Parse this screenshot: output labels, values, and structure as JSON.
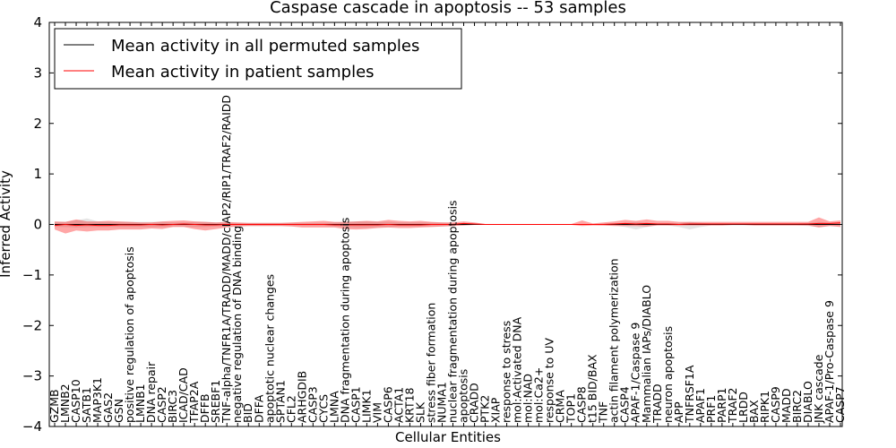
{
  "chart_data": {
    "type": "line",
    "title": "Caspase cascade in apoptosis -- 53 samples",
    "xlabel": "Cellular Entities",
    "ylabel": "Inferred Activity",
    "ylim": [
      -4,
      4
    ],
    "yticks": [
      -4,
      -3,
      -2,
      -1,
      0,
      1,
      2,
      3,
      4
    ],
    "ytick_labels": [
      "−4",
      "−3",
      "−2",
      "−1",
      "0",
      "1",
      "2",
      "3",
      "4"
    ],
    "legend": {
      "location": "top-left",
      "entries": [
        "Mean activity in all permuted samples",
        "Mean activity in patient samples"
      ]
    },
    "categories": [
      "GZMB",
      "LMNB2",
      "CASP10",
      "SATB1",
      "MAP3K1",
      "GAS2",
      "GSN",
      "positive regulation of apoptosis",
      "LMNB1",
      "DNA repair",
      "CASP2",
      "BIRC3",
      "ICAD/CAD",
      "TFAP2A",
      "DFFB",
      "SREBF1",
      "TNF-alpha/TNFR1A/TRADD/MADD/cIAP2/RIP1/TRAF2/RAIDD",
      "negative regulation of DNA binding",
      "BID",
      "DFFA",
      "apoptotic nuclear changes",
      "SPTAN1",
      "CFL2",
      "ARHGDIB",
      "CASP3",
      "CYCS",
      "LMNA",
      "DNA fragmentation during apoptosis",
      "CASP1",
      "LIMK1",
      "VIM",
      "CASP6",
      "ACTA1",
      "KRT18",
      "SLK",
      "stress fiber formation",
      "NUMA1",
      "nuclear fragmentation during apoptosis",
      "apoptosis",
      "CRADD",
      "PTK2",
      "XIAP",
      "response to stress",
      "mol:Activated DNA",
      "mol:NAD",
      "mol:Ca2+",
      "response to UV",
      "CRMA",
      "TOP1",
      "CASP8",
      "t15 BID/BAX",
      "TNF",
      "actin filament polymerization",
      "CASP4",
      "APAF-1/Caspase 9",
      "Mammalian IAPs/DIABLO",
      "TRADD",
      "neuron apoptosis",
      "APP",
      "TNFRSF1A",
      "APAF1",
      "PRF1",
      "PARP1",
      "TRAF2",
      "LRDD",
      "BAX",
      "RIPK1",
      "CASP9",
      "MADD",
      "BIRC2",
      "DIABLO",
      "JNK cascade",
      "APAF-1/Pro-Caspase 9",
      "CASP7"
    ],
    "series": [
      {
        "name": "Mean activity in all permuted samples",
        "color": "#000000",
        "values": [
          0,
          0,
          0,
          0,
          0,
          0,
          0,
          0,
          0,
          0,
          0,
          0,
          0,
          0,
          0,
          0,
          0,
          0,
          0,
          0,
          0,
          0,
          0,
          0,
          0,
          0,
          0,
          0,
          0,
          0,
          0,
          0,
          0,
          0,
          0,
          0,
          0,
          0,
          0,
          0,
          0,
          0,
          0,
          0,
          0,
          0,
          0,
          0,
          0,
          0,
          0,
          0,
          0,
          0,
          0,
          0,
          0,
          0,
          0,
          0,
          0,
          0,
          0,
          0,
          0,
          0,
          0,
          0,
          0,
          0,
          0,
          0,
          0,
          0
        ],
        "band_low": [
          -0.05,
          -0.05,
          -0.06,
          -0.05,
          -0.05,
          -0.05,
          -0.05,
          -0.05,
          -0.05,
          -0.05,
          -0.05,
          -0.04,
          -0.04,
          -0.05,
          -0.05,
          -0.04,
          -0.04,
          -0.03,
          -0.03,
          -0.03,
          -0.03,
          -0.03,
          -0.03,
          -0.03,
          -0.03,
          -0.03,
          -0.04,
          -0.05,
          -0.06,
          -0.06,
          -0.05,
          -0.05,
          -0.04,
          -0.04,
          -0.04,
          -0.04,
          -0.04,
          -0.03,
          -0.02,
          -0.01,
          -0.01,
          -0.01,
          -0.01,
          -0.01,
          -0.01,
          -0.01,
          -0.01,
          -0.01,
          -0.01,
          -0.01,
          -0.01,
          -0.02,
          -0.02,
          -0.05,
          -0.1,
          -0.05,
          -0.02,
          -0.02,
          -0.05,
          -0.1,
          -0.05,
          -0.02,
          -0.02,
          -0.02,
          -0.02,
          -0.02,
          -0.02,
          -0.02,
          -0.02,
          -0.02,
          -0.03,
          -0.05,
          -0.03,
          -0.03
        ],
        "band_high": [
          0.05,
          0.05,
          0.08,
          0.12,
          0.06,
          0.05,
          0.05,
          0.05,
          0.05,
          0.05,
          0.05,
          0.04,
          0.04,
          0.05,
          0.05,
          0.04,
          0.04,
          0.03,
          0.03,
          0.03,
          0.03,
          0.03,
          0.03,
          0.03,
          0.03,
          0.03,
          0.04,
          0.05,
          0.06,
          0.06,
          0.05,
          0.05,
          0.04,
          0.04,
          0.04,
          0.04,
          0.04,
          0.03,
          0.02,
          0.01,
          0.01,
          0.01,
          0.01,
          0.01,
          0.01,
          0.01,
          0.01,
          0.01,
          0.01,
          0.01,
          0.01,
          0.02,
          0.02,
          0.03,
          0.05,
          0.03,
          0.02,
          0.02,
          0.03,
          0.05,
          0.03,
          0.02,
          0.02,
          0.02,
          0.02,
          0.02,
          0.02,
          0.02,
          0.02,
          0.02,
          0.03,
          0.05,
          0.03,
          0.03
        ]
      },
      {
        "name": "Mean activity in patient samples",
        "color": "#ff0000",
        "values": [
          -0.02,
          0,
          -0.02,
          -0.01,
          -0.02,
          -0.02,
          -0.01,
          -0.01,
          -0.01,
          0,
          -0.01,
          0,
          0.01,
          0,
          -0.01,
          -0.01,
          0,
          0,
          0,
          0,
          0,
          0,
          0,
          0,
          0,
          0,
          -0.01,
          -0.01,
          -0.01,
          -0.01,
          -0.01,
          0,
          -0.01,
          -0.01,
          -0.01,
          0,
          0,
          0,
          0.02,
          0.01,
          0,
          0,
          0,
          0,
          0,
          0,
          0,
          0,
          0,
          0,
          0,
          0,
          0.01,
          0.02,
          0.01,
          0.02,
          0.01,
          0.01,
          0,
          0.01,
          0.01,
          0.01,
          0.01,
          0.01,
          0.01,
          0.01,
          0.01,
          0.01,
          0.01,
          0.01,
          0.01,
          0.02,
          0.02,
          0.03
        ],
        "band_low": [
          -0.1,
          -0.18,
          -0.12,
          -0.14,
          -0.12,
          -0.12,
          -0.1,
          -0.1,
          -0.1,
          -0.08,
          -0.09,
          -0.05,
          -0.05,
          -0.09,
          -0.12,
          -0.09,
          -0.06,
          -0.04,
          -0.03,
          -0.03,
          -0.03,
          -0.03,
          -0.04,
          -0.06,
          -0.06,
          -0.06,
          -0.06,
          -0.09,
          -0.1,
          -0.09,
          -0.07,
          -0.06,
          -0.07,
          -0.07,
          -0.06,
          -0.05,
          -0.04,
          -0.03,
          -0.02,
          -0.01,
          -0.01,
          -0.01,
          -0.01,
          -0.01,
          -0.01,
          -0.01,
          -0.01,
          -0.01,
          -0.01,
          -0.03,
          -0.02,
          -0.02,
          -0.03,
          -0.03,
          -0.03,
          -0.04,
          -0.02,
          -0.02,
          -0.02,
          -0.02,
          -0.02,
          -0.02,
          -0.02,
          -0.01,
          -0.01,
          -0.02,
          -0.02,
          -0.02,
          -0.02,
          -0.02,
          -0.02,
          -0.06,
          -0.03,
          -0.05
        ],
        "band_high": [
          0.06,
          0.05,
          0.1,
          0.06,
          0.06,
          0.07,
          0.06,
          0.05,
          0.04,
          0.04,
          0.06,
          0.07,
          0.08,
          0.06,
          0.05,
          0.04,
          0.05,
          0.04,
          0.03,
          0.03,
          0.03,
          0.03,
          0.04,
          0.05,
          0.06,
          0.07,
          0.05,
          0.05,
          0.06,
          0.07,
          0.06,
          0.09,
          0.07,
          0.06,
          0.07,
          0.05,
          0.04,
          0.04,
          0.06,
          0.04,
          0.01,
          0.01,
          0.01,
          0.01,
          0.01,
          0.01,
          0.01,
          0.01,
          0.01,
          0.08,
          0.02,
          0.04,
          0.06,
          0.09,
          0.07,
          0.1,
          0.07,
          0.07,
          0.05,
          0.05,
          0.05,
          0.05,
          0.05,
          0.05,
          0.05,
          0.05,
          0.05,
          0.05,
          0.05,
          0.05,
          0.05,
          0.14,
          0.06,
          0.08
        ]
      }
    ]
  }
}
